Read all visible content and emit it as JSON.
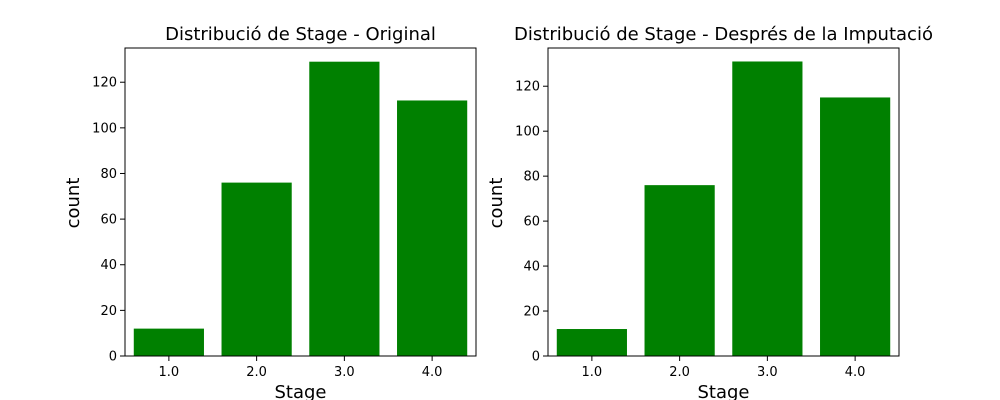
{
  "figure": {
    "bar_color": "#008000",
    "axis_color": "#000000",
    "background": "#ffffff"
  },
  "chart_data": [
    {
      "type": "bar",
      "title": "Distribució de Stage - Original",
      "xlabel": "Stage",
      "ylabel": "count",
      "categories": [
        "1.0",
        "2.0",
        "3.0",
        "4.0"
      ],
      "values": [
        12,
        76,
        129,
        112
      ],
      "ylim": [
        0,
        135
      ],
      "yticks": [
        0,
        20,
        40,
        60,
        80,
        100,
        120
      ],
      "grid": false
    },
    {
      "type": "bar",
      "title": "Distribució de Stage - Després de la Imputació",
      "xlabel": "Stage",
      "ylabel": "count",
      "categories": [
        "1.0",
        "2.0",
        "3.0",
        "4.0"
      ],
      "values": [
        12,
        76,
        131,
        115
      ],
      "ylim": [
        0,
        137
      ],
      "yticks": [
        0,
        20,
        40,
        60,
        80,
        100,
        120
      ],
      "grid": false
    }
  ]
}
